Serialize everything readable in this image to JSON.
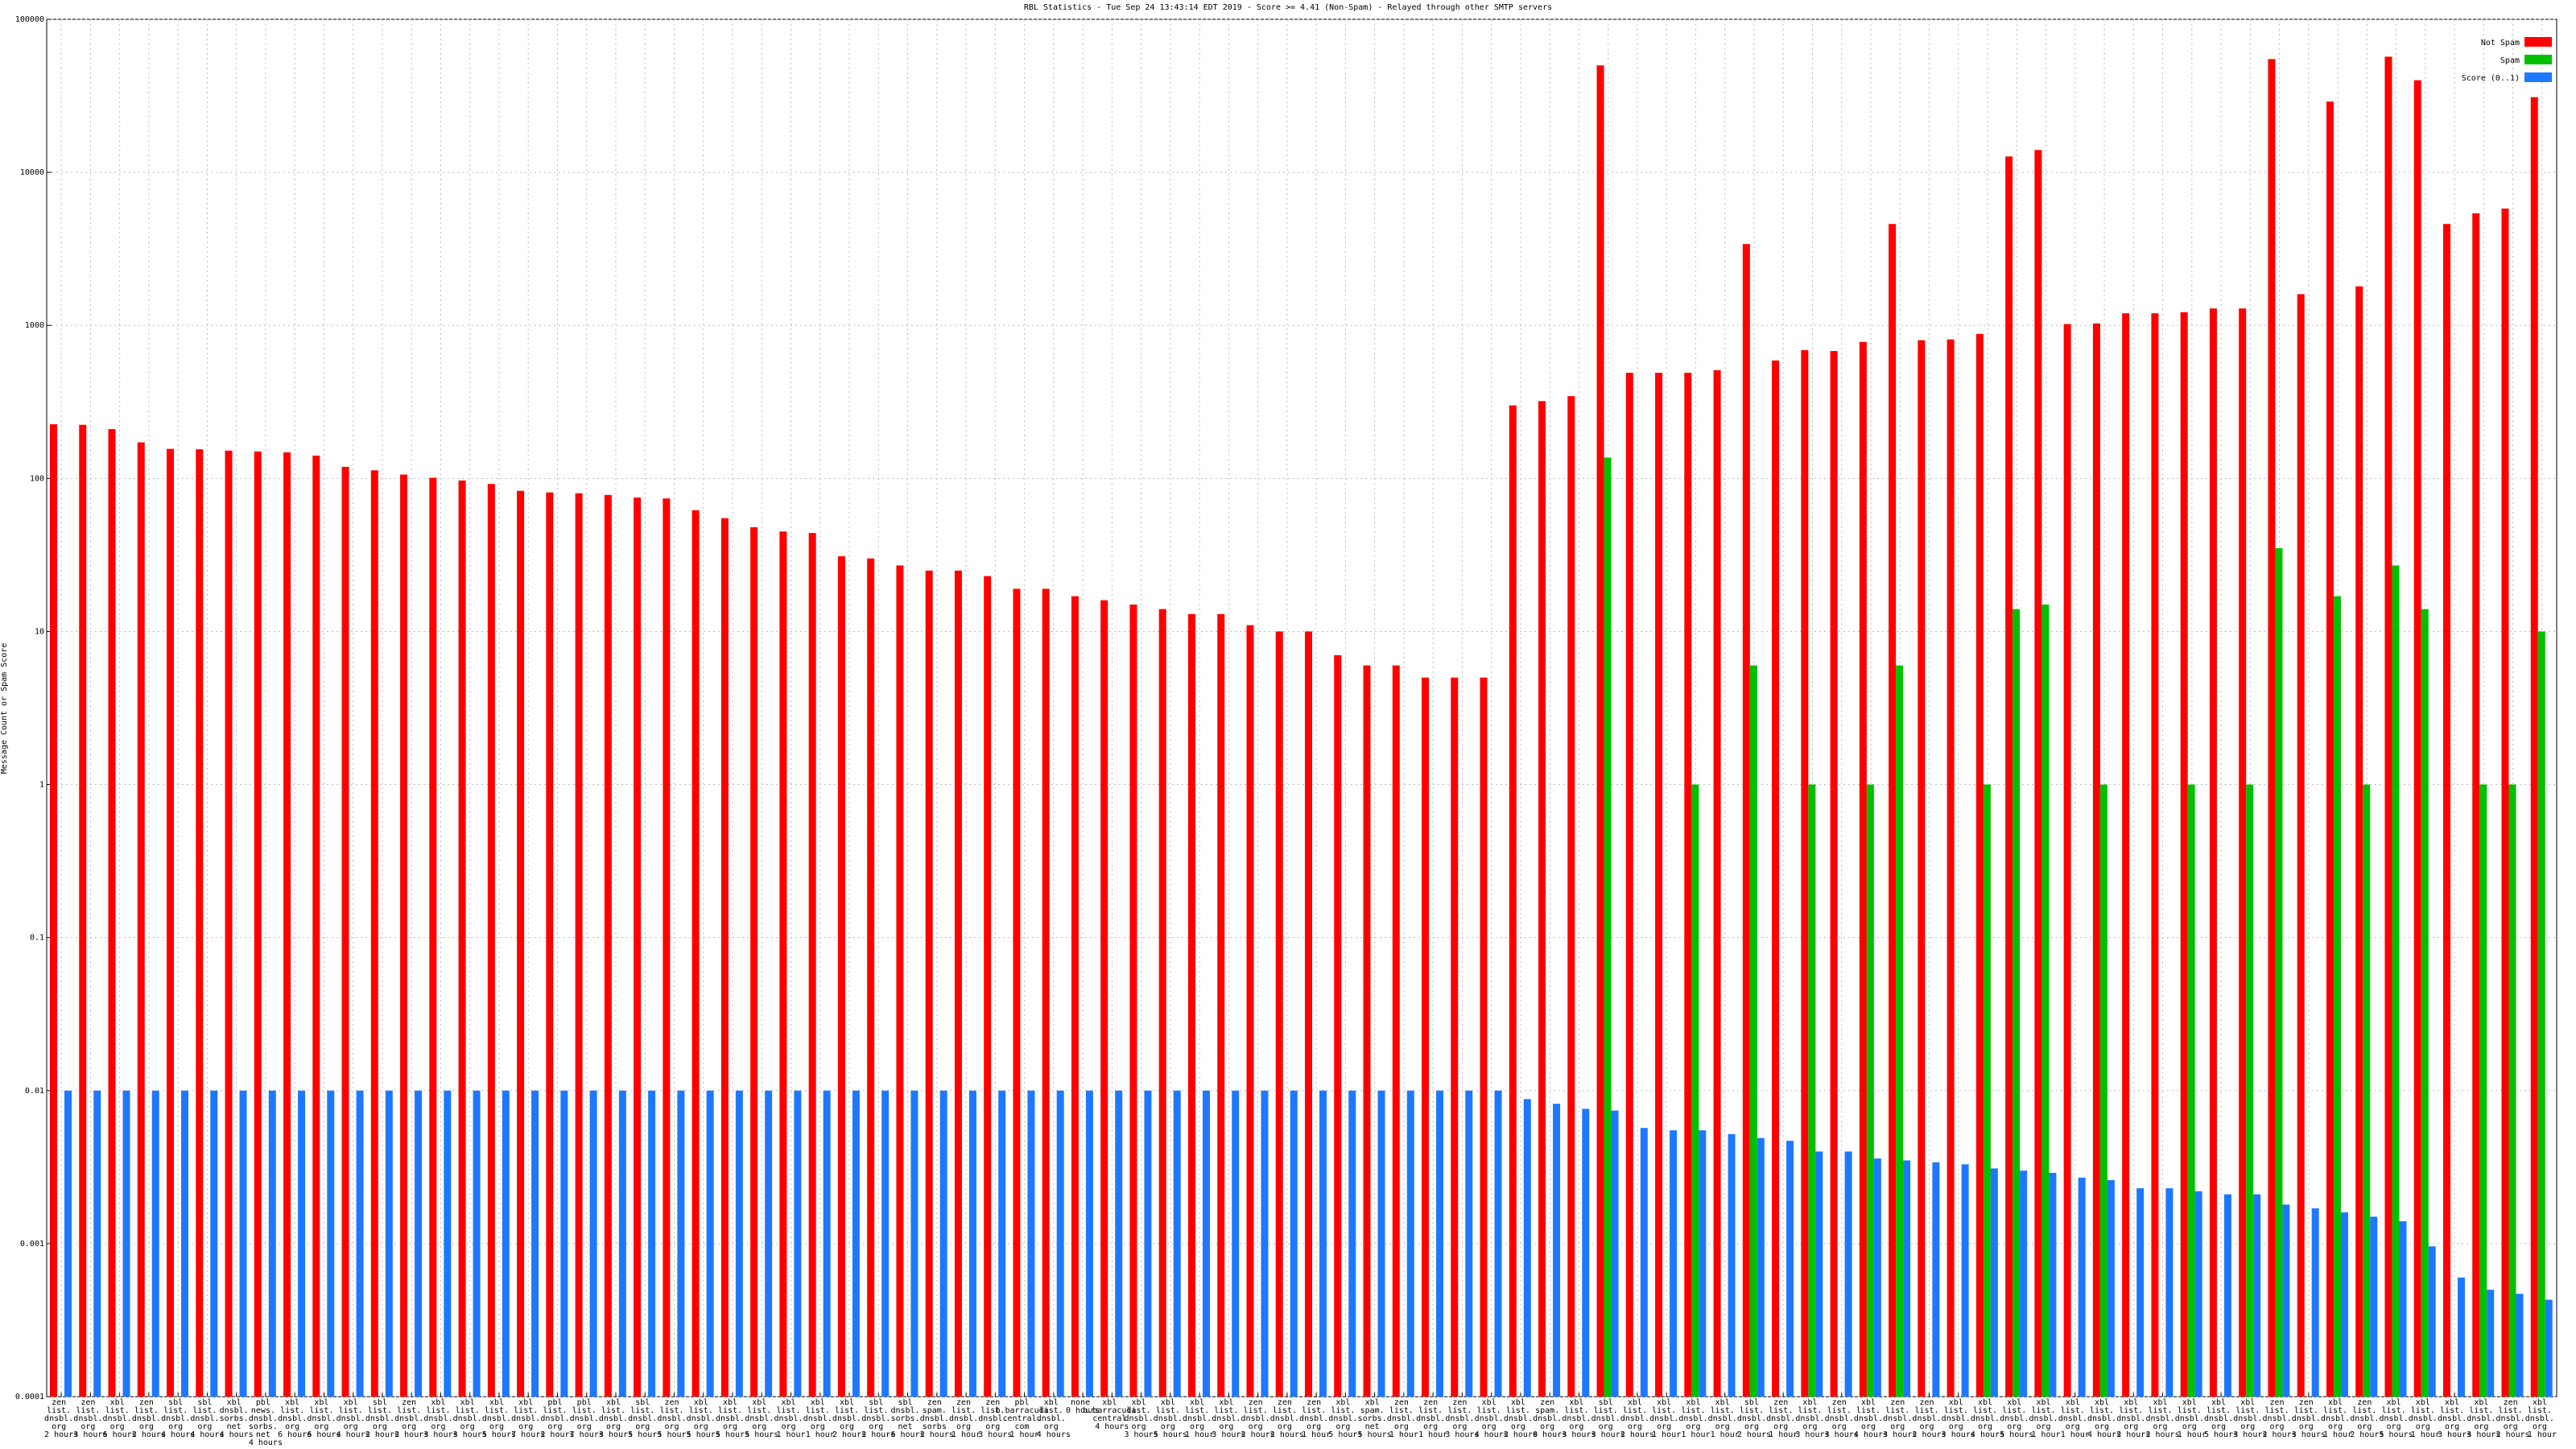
{
  "chart_data": {
    "type": "bar",
    "title": "RBL Statistics - Tue Sep 24 13:43:14 EDT 2019 - Score >= 4.41 (Non-Spam) - Relayed through other SMTP servers",
    "ylabel": "Message Count or Spam Score",
    "log_scale": true,
    "grid": true,
    "legend": "upper right",
    "ylim": [
      0.0001,
      100000
    ],
    "yticks": [
      0.0001,
      0.001,
      0.01,
      0.1,
      1,
      10,
      100,
      1000,
      10000,
      100000
    ],
    "categories": [
      "zen\nlist.\ndnsbl.\norg\n2 hours",
      "zen\nlist.\ndnsbl.\norg\n3 hours",
      "xbl\nlist.\ndnsbl.\norg\n6 hours",
      "zen\nlist.\ndnsbl.\norg\n2 hours",
      "sbl\nlist.\ndnsbl.\norg\n4 hours",
      "sbl\nlist.\ndnsbl.\norg\n4 hours",
      "xbl\ndnsbl.\nsorbs.\nnet\n4 hours",
      "pbl\nnews.\ndnsbl.\nsorbs.\nnet\n4 hours",
      "xbl\nlist.\ndnsbl.\norg\n6 hours",
      "xbl\nlist.\ndnsbl.\norg\n6 hours",
      "xbl\nlist.\ndnsbl.\norg\n4 hours",
      "sbl\nlist.\ndnsbl.\norg\n2 hours",
      "zen\nlist.\ndnsbl.\norg\n2 hours",
      "xbl\nlist.\ndnsbl.\norg\n3 hours",
      "xbl\nlist.\ndnsbl.\norg\n3 hours",
      "xbl\nlist.\ndnsbl.\norg\n5 hours",
      "xbl\nlist.\ndnsbl.\norg\n7 hours",
      "pbl\nlist.\ndnsbl.\norg\n2 hours",
      "pbl\nlist.\ndnsbl.\norg\n7 hours",
      "xbl\nlist.\ndnsbl.\norg\n3 hours",
      "sbl\nlist.\ndnsbl.\norg\n5 hours",
      "zen\nlist.\ndnsbl.\norg\n5 hours",
      "xbl\nlist.\ndnsbl.\norg\n5 hours",
      "xbl\nlist.\ndnsbl.\norg\n5 hours",
      "xbl\nlist.\ndnsbl.\norg\n5 hours",
      "xbl\nlist.\ndnsbl.\norg\n1 hour",
      "xbl\nlist.\ndnsbl.\norg\n1 hour",
      "xbl\nlist.\ndnsbl.\norg\n2 hours",
      "sbl\nlist.\ndnsbl.\norg\n2 hours",
      "sbl\ndnsbl.\nsorbs.\nnet\n6 hours",
      "zen\nspam.\ndnsbl.\nsorbs\n2 hours",
      "zen\nlist.\ndnsbl.\norg\n1 hour",
      "zen\nlist.\ndnsbl.\norg\n3 hours",
      "pbl\nb.barracuda\ncentral.\ncom\n1 hour",
      "xbl\nlist.\ndnsbl.\norg\n4 hours",
      "none\n0 hours",
      "xbl\nb.barracuda\ncentral\n4 hours",
      "xbl\nlist.\ndnsbl.\norg\n3 hours",
      "xbl\nlist.\ndnsbl.\norg\n5 hours",
      "xbl\nlist.\ndnsbl.\norg\n1 hour",
      "xbl\nlist.\ndnsbl.\norg\n3 hours",
      "zen\nlist.\ndnsbl.\norg\n2 hours",
      "zen\nlist.\ndnsbl.\norg\n2 hours",
      "zen\nlist.\ndnsbl.\norg\n1 hour",
      "xbl\nlist.\ndnsbl.\norg\n5 hours",
      "xbl\nspam.\nsorbs.\nnet\n5 hours",
      "zen\nlist.\ndnsbl.\norg\n1 hour",
      "zen\nlist.\ndnsbl.\norg\n1 hour",
      "zen\nlist.\ndnsbl.\norg\n3 hours",
      "xbl\nlist.\ndnsbl.\norg\n4 hours",
      "xbl\nlist.\ndnsbl.\norg\n2 hours",
      "zen\nspam.\ndnsbl.\norg\n0 hours",
      "xbl\nlist.\ndnsbl.\norg\n3 hours",
      "sbl\nlist.\ndnsbl.\norg\n3 hours",
      "xbl\nlist.\ndnsbl.\norg\n2 hours",
      "xbl\nlist.\ndnsbl.\norg\n1 hour",
      "xbl\nlist.\ndnsbl.\norg\n1 hour",
      "xbl\nlist.\ndnsbl.\norg\n1 hour",
      "sbl\nlist.\ndnsbl.\norg\n2 hours",
      "zen\nlist.\ndnsbl.\norg\n1 hour",
      "xbl\nlist.\ndnsbl.\norg\n3 hours",
      "zen\nlist.\ndnsbl.\norg\n3 hours",
      "xbl\nlist.\ndnsbl.\norg\n4 hours",
      "zen\nlist.\ndnsbl.\norg\n3 hours",
      "zen\nlist.\ndnsbl.\norg\n2 hours",
      "xbl\nlist.\ndnsbl.\norg\n3 hours",
      "xbl\nlist.\ndnsbl.\norg\n4 hours",
      "xbl\nlist.\ndnsbl.\norg\n5 hours",
      "xbl\nlist.\ndnsbl.\norg\n1 hour",
      "xbl\nlist.\ndnsbl.\norg\n1 hour",
      "xbl\nlist.\ndnsbl.\norg\n4 hours",
      "xbl\nlist.\ndnsbl.\norg\n2 hours",
      "xbl\nlist.\ndnsbl.\norg\n2 hours",
      "xbl\nlist.\ndnsbl.\norg\n1 hour",
      "xbl\nlist.\ndnsbl.\norg\n5 hours",
      "xbl\nlist.\ndnsbl.\norg\n3 hours",
      "zen\nlist.\ndnsbl.\norg\n2 hours",
      "zen\nlist.\ndnsbl.\norg\n3 hours",
      "xbl\nlist.\ndnsbl.\norg\n1 hour",
      "zen\nlist.\ndnsbl.\norg\n2 hours",
      "xbl\nlist.\ndnsbl.\norg\n5 hours",
      "xbl\nlist.\ndnsbl.\norg\n1 hour",
      "xbl\nlist.\ndnsbl.\norg\n3 hours",
      "xbl\nlist.\ndnsbl.\norg\n3 hours",
      "zen\nlist.\ndnsbl.\norg\n2 hours",
      "xbl\nlist.\ndnsbl.\norg\n1 hour"
    ],
    "series": [
      {
        "name": "Not Spam",
        "color": "#ff0000",
        "values": [
          226,
          224,
          210,
          172,
          156,
          155,
          152,
          150,
          148,
          141,
          119,
          113,
          106,
          101,
          97,
          92,
          83,
          81,
          80,
          78,
          75,
          74,
          62,
          55,
          48,
          45,
          44,
          31,
          30,
          27,
          25,
          25,
          23,
          19,
          19,
          17,
          16,
          15,
          14,
          13,
          13,
          11,
          10,
          10,
          7,
          6,
          6,
          5,
          5,
          5,
          300,
          320,
          345,
          50000,
          490,
          490,
          490,
          510,
          3400,
          590,
          690,
          680,
          780,
          4600,
          800,
          810,
          880,
          12700,
          14000,
          1020,
          1030,
          1200,
          1200,
          1220,
          1290,
          1290,
          55000,
          1600,
          29000,
          1800,
          57000,
          40000,
          4600,
          5400,
          5800,
          31000
        ]
      },
      {
        "name": "Spam",
        "color": "#00c000",
        "values": [
          null,
          null,
          null,
          null,
          null,
          null,
          null,
          null,
          null,
          null,
          null,
          null,
          null,
          null,
          null,
          null,
          null,
          null,
          null,
          null,
          null,
          null,
          null,
          null,
          null,
          null,
          null,
          null,
          null,
          null,
          null,
          null,
          null,
          null,
          null,
          null,
          null,
          null,
          null,
          null,
          null,
          null,
          null,
          null,
          null,
          null,
          null,
          null,
          null,
          null,
          null,
          null,
          null,
          137,
          null,
          null,
          1,
          null,
          6,
          null,
          1,
          null,
          1,
          6,
          null,
          null,
          1,
          14,
          15,
          null,
          1,
          null,
          null,
          1,
          null,
          1,
          35,
          null,
          17,
          1,
          27,
          14,
          null,
          1,
          1,
          10
        ]
      },
      {
        "name": "Score (0..1)",
        "color": "#1e78ff",
        "values": [
          0.01,
          0.01,
          0.01,
          0.01,
          0.01,
          0.01,
          0.01,
          0.01,
          0.01,
          0.01,
          0.01,
          0.01,
          0.01,
          0.01,
          0.01,
          0.01,
          0.01,
          0.01,
          0.01,
          0.01,
          0.01,
          0.01,
          0.01,
          0.01,
          0.01,
          0.01,
          0.01,
          0.01,
          0.01,
          0.01,
          0.01,
          0.01,
          0.01,
          0.01,
          0.01,
          0.01,
          0.01,
          0.01,
          0.01,
          0.01,
          0.01,
          0.01,
          0.01,
          0.01,
          0.01,
          0.01,
          0.01,
          0.01,
          0.01,
          0.01,
          0.0088,
          0.0082,
          0.0076,
          0.0074,
          0.0057,
          0.0055,
          0.0055,
          0.0052,
          0.0049,
          0.0047,
          0.004,
          0.004,
          0.0036,
          0.0035,
          0.0034,
          0.0033,
          0.0031,
          0.003,
          0.0029,
          0.0027,
          0.0026,
          0.0023,
          0.0023,
          0.0022,
          0.0021,
          0.0021,
          0.0018,
          0.0017,
          0.0016,
          0.0015,
          0.0014,
          0.00096,
          0.0006,
          0.0005,
          0.00047,
          0.00043
        ]
      }
    ]
  }
}
